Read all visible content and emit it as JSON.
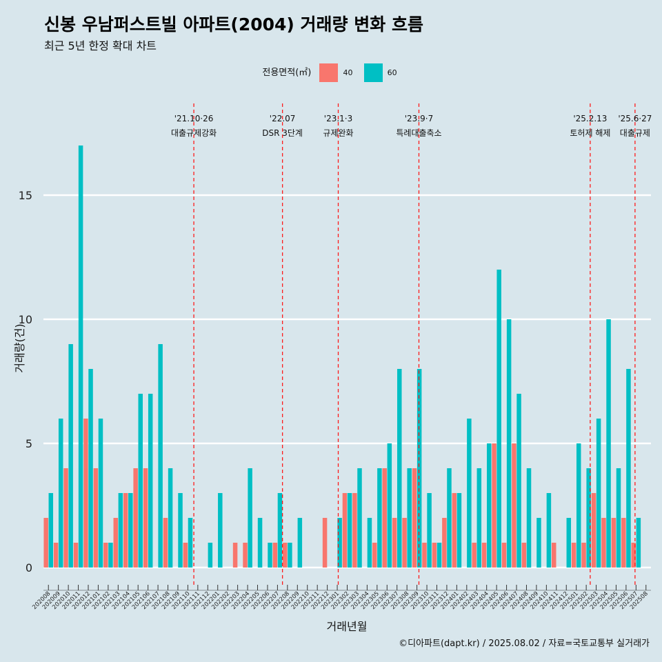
{
  "chart_data": {
    "type": "bar",
    "title": "신봉 우남퍼스트빌 아파트(2004) 거래량 변화 흐름",
    "subtitle": "최근 5년 한정 확대 차트",
    "xlabel": "거래년월",
    "ylabel": "거래량(건)",
    "ylim": [
      0,
      17
    ],
    "y_ticks": [
      "0",
      "5",
      "10",
      "15"
    ],
    "legend": {
      "title": "전용면적(㎡)",
      "placement": "top",
      "items": [
        {
          "label": "40",
          "color": "#f8766d"
        },
        {
          "label": "60",
          "color": "#00bfc4"
        }
      ]
    },
    "categories": [
      "202008",
      "202009",
      "202010",
      "202011",
      "202012",
      "202101",
      "202102",
      "202103",
      "202104",
      "202105",
      "202106",
      "202107",
      "202108",
      "202109",
      "202110",
      "202111",
      "202112",
      "202201",
      "202202",
      "202203",
      "202204",
      "202205",
      "202206",
      "202207",
      "202208",
      "202209",
      "202210",
      "202211",
      "202212",
      "202301",
      "202302",
      "202303",
      "202304",
      "202305",
      "202306",
      "202307",
      "202308",
      "202309",
      "202310",
      "202311",
      "202312",
      "202401",
      "202402",
      "202403",
      "202404",
      "202405",
      "202406",
      "202407",
      "202408",
      "202409",
      "202410",
      "202411",
      "202412",
      "202501",
      "202502",
      "202503",
      "202504",
      "202505",
      "202506",
      "202507",
      "202508"
    ],
    "series": [
      {
        "name": "40",
        "color": "#f8766d",
        "values": [
          2,
          1,
          4,
          1,
          6,
          4,
          1,
          2,
          3,
          4,
          4,
          0,
          2,
          0,
          1,
          0,
          0,
          0,
          0,
          1,
          1,
          0,
          0,
          1,
          1,
          0,
          0,
          0,
          2,
          0,
          3,
          3,
          0,
          1,
          4,
          2,
          2,
          4,
          1,
          1,
          2,
          3,
          0,
          1,
          1,
          5,
          1,
          5,
          1,
          0,
          0,
          1,
          0,
          1,
          1,
          3,
          2,
          2,
          2,
          1,
          0
        ]
      },
      {
        "name": "60",
        "color": "#00bfc4",
        "values": [
          3,
          6,
          9,
          17,
          8,
          6,
          1,
          3,
          3,
          7,
          7,
          9,
          4,
          3,
          2,
          0,
          1,
          3,
          0,
          0,
          4,
          2,
          1,
          3,
          1,
          2,
          0,
          0,
          0,
          2,
          3,
          4,
          2,
          4,
          5,
          8,
          4,
          8,
          3,
          1,
          4,
          3,
          6,
          4,
          5,
          12,
          10,
          7,
          4,
          2,
          3,
          0,
          2,
          5,
          4,
          6,
          10,
          4,
          8,
          2,
          0
        ]
      }
    ],
    "annotations": [
      {
        "date": "'21.10·26",
        "label": "대출규제강화",
        "after": "202110",
        "frac": 0.6
      },
      {
        "date": "'22.07",
        "label": "DSR 3단계",
        "after": "202207",
        "frac": 0.5
      },
      {
        "date": "'23.1·3",
        "label": "규제완화",
        "after": "202301",
        "frac": 0.1
      },
      {
        "date": "'23.9·7",
        "label": "특례대출축소",
        "after": "202309",
        "frac": 0.2
      },
      {
        "date": "'25.2.13",
        "label": "토허제 해제",
        "after": "202502",
        "frac": 0.4
      },
      {
        "date": "'25.6·27",
        "label": "대출규제",
        "after": "202506",
        "frac": 0.9
      }
    ],
    "caption": "©디아파트(dapt.kr) / 2025.08.02 / 자료=국토교통부 실거래가"
  }
}
